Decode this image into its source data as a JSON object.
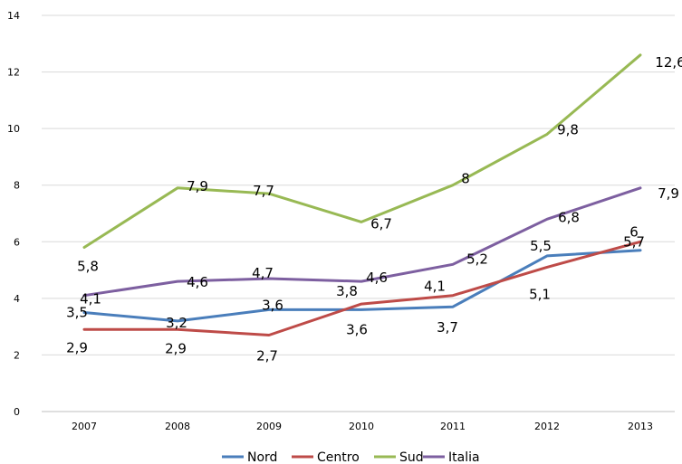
{
  "chart_data": {
    "type": "line",
    "title": "",
    "xlabel": "",
    "ylabel": "",
    "categories": [
      "2007",
      "2008",
      "2009",
      "2010",
      "2011",
      "2012",
      "2013"
    ],
    "ylim": [
      0,
      14
    ],
    "yticks": [
      "0",
      "2",
      "4",
      "6",
      "8",
      "10",
      "12",
      "14"
    ],
    "grid": true,
    "legend_position": "bottom",
    "series": [
      {
        "name": "Nord",
        "color": "#4a7ebb",
        "values": [
          3.5,
          3.2,
          3.6,
          3.6,
          3.7,
          5.5,
          5.7
        ],
        "labels": [
          "3,5",
          "3,2",
          "3,6",
          "3,6",
          "3,7",
          "5,5",
          "5,7"
        ]
      },
      {
        "name": "Centro",
        "color": "#be4b48",
        "values": [
          2.9,
          2.9,
          2.7,
          3.8,
          4.1,
          5.1,
          6
        ],
        "labels": [
          "2,9",
          "2,9",
          "2,7",
          "3,8",
          "4,1",
          "5,1",
          "6"
        ]
      },
      {
        "name": "Sud",
        "color": "#98b954",
        "values": [
          5.8,
          7.9,
          7.7,
          6.7,
          8,
          9.8,
          12.6
        ],
        "labels": [
          "5,8",
          "7,9",
          "7,7",
          "6,7",
          "8",
          "9,8",
          "12,6"
        ]
      },
      {
        "name": "Italia",
        "color": "#7d5fa0",
        "values": [
          4.1,
          4.6,
          4.7,
          4.6,
          5.2,
          6.8,
          7.9
        ],
        "labels": [
          "4,1",
          "4,6",
          "4,7",
          "4,6",
          "5,2",
          "6,8",
          "7,9"
        ]
      }
    ]
  }
}
